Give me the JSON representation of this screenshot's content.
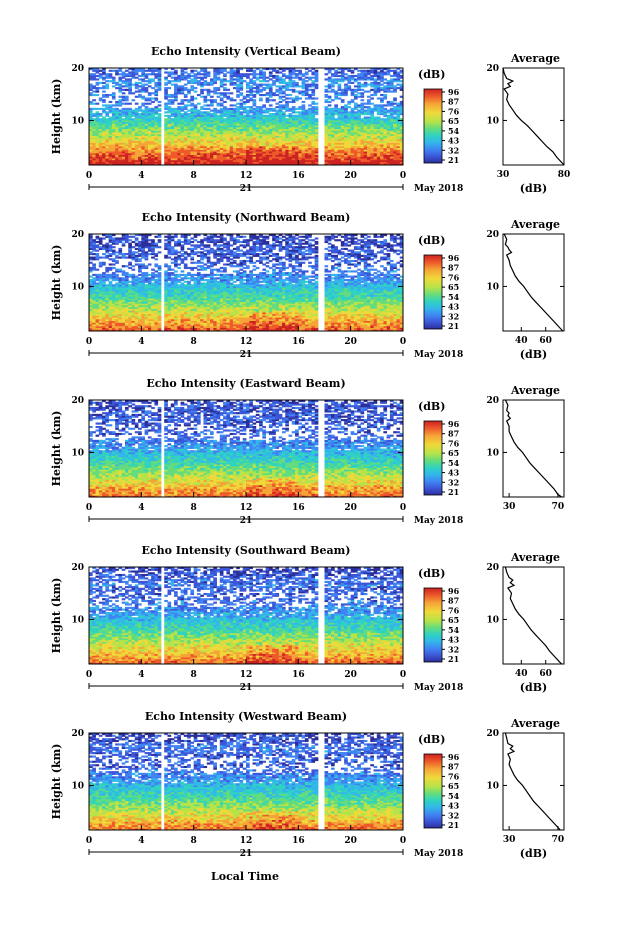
{
  "figure": {
    "xlabel": "Local Time",
    "date_label": "May 2018",
    "day_label": "21"
  },
  "colorbar": {
    "unit_label": "(dB)",
    "ticks": [
      "96",
      "87",
      "76",
      "65",
      "54",
      "43",
      "32",
      "21"
    ],
    "ticks_by_panel": [
      [
        "96",
        "87",
        "76",
        "65",
        "54",
        "43",
        "32",
        "21"
      ],
      [
        "96",
        "87",
        "76",
        "65",
        "54",
        "43",
        "32",
        "21"
      ],
      [
        "96",
        "87",
        "76",
        "65",
        "54",
        "43",
        "32",
        "21"
      ],
      [
        "96",
        "87",
        "76",
        "65",
        "54",
        "43",
        "32",
        "21"
      ],
      [
        "96",
        "87",
        "76",
        "65",
        "54",
        "43",
        "32",
        "21"
      ]
    ],
    "colors": [
      "#2b2f9a",
      "#3c56d8",
      "#3f84f2",
      "#33b7ea",
      "#30d2c1",
      "#62dc7e",
      "#b6e34a",
      "#efd93a",
      "#f5a437",
      "#ee5a2a",
      "#cc2222"
    ]
  },
  "chart_data": [
    {
      "type": "heatmap",
      "title": "Echo Intensity (Vertical Beam)",
      "ylabel": "Height (km)",
      "x_ticks": [
        "0",
        "4",
        "8",
        "12",
        "16",
        "20",
        "0"
      ],
      "y_ticks": [
        "20",
        "10"
      ],
      "xlim": [
        0,
        24
      ],
      "ylim": [
        1.5,
        20
      ],
      "color_range_db": [
        21,
        96
      ],
      "data_gaps_local_time": [
        [
          5.5,
          5.8
        ],
        [
          17.6,
          17.9
        ]
      ],
      "profile": {
        "title": "Average",
        "xlabel": "(dB)",
        "x_ticks": [
          "30",
          "80"
        ],
        "xlim": [
          30,
          80
        ],
        "y_ticks": [
          "20",
          "10"
        ],
        "height_km": [
          1.5,
          2,
          3,
          4,
          5,
          6,
          7,
          8,
          9,
          10,
          11,
          12,
          13,
          14,
          15,
          16,
          16.5,
          17,
          17.5,
          18,
          19,
          20
        ],
        "mean_db": [
          80,
          78,
          74,
          71,
          66,
          62,
          58,
          54,
          50,
          45,
          41,
          38,
          35,
          33,
          34,
          31,
          36,
          34,
          38,
          33,
          31,
          30
        ]
      }
    },
    {
      "type": "heatmap",
      "title": "Echo Intensity (Northward Beam)",
      "ylabel": "Height (km)",
      "x_ticks": [
        "0",
        "4",
        "8",
        "12",
        "16",
        "20",
        "0"
      ],
      "y_ticks": [
        "20",
        "10"
      ],
      "xlim": [
        0,
        24
      ],
      "ylim": [
        1.5,
        20
      ],
      "color_range_db": [
        21,
        96
      ],
      "data_gaps_local_time": [
        [
          5.5,
          5.8
        ],
        [
          17.6,
          17.9
        ]
      ],
      "profile": {
        "title": "Average",
        "xlabel": "(dB)",
        "x_ticks": [
          "40",
          "60"
        ],
        "xlim": [
          25,
          75
        ],
        "y_ticks": [
          "20",
          "10"
        ],
        "height_km": [
          1.5,
          2,
          3,
          4,
          5,
          6,
          7,
          8,
          9,
          10,
          11,
          12,
          13,
          14,
          15,
          16,
          16.5,
          17,
          17.5,
          18,
          19,
          20
        ],
        "mean_db": [
          74,
          72,
          68,
          64,
          60,
          56,
          52,
          48,
          45,
          42,
          38,
          35,
          33,
          31,
          30,
          28,
          32,
          30,
          29,
          27,
          28,
          26
        ]
      }
    },
    {
      "type": "heatmap",
      "title": "Echo Intensity (Eastward Beam)",
      "ylabel": "Height (km)",
      "x_ticks": [
        "0",
        "4",
        "8",
        "12",
        "16",
        "20",
        "0"
      ],
      "y_ticks": [
        "20",
        "10"
      ],
      "xlim": [
        0,
        24
      ],
      "ylim": [
        1.5,
        20
      ],
      "color_range_db": [
        21,
        96
      ],
      "data_gaps_local_time": [
        [
          5.5,
          5.8
        ],
        [
          17.6,
          17.9
        ]
      ],
      "profile": {
        "title": "Average",
        "xlabel": "",
        "x_ticks": [
          "30",
          "70"
        ],
        "xlim": [
          25,
          75
        ],
        "y_ticks": [
          "20",
          "10"
        ],
        "height_km": [
          1.5,
          2,
          3,
          4,
          5,
          6,
          7,
          8,
          9,
          10,
          11,
          12,
          13,
          14,
          15,
          16,
          16.5,
          17,
          17.5,
          18,
          19,
          20
        ],
        "mean_db": [
          73,
          70,
          67,
          63,
          59,
          55,
          51,
          47,
          44,
          41,
          37,
          34,
          32,
          30,
          30,
          28,
          31,
          29,
          30,
          28,
          29,
          27
        ]
      }
    },
    {
      "type": "heatmap",
      "title": "Echo Intensity (Southward Beam)",
      "ylabel": "Height (km)",
      "x_ticks": [
        "0",
        "4",
        "8",
        "12",
        "16",
        "20",
        "0"
      ],
      "y_ticks": [
        "20",
        "10"
      ],
      "xlim": [
        0,
        24
      ],
      "ylim": [
        1.5,
        20
      ],
      "color_range_db": [
        21,
        96
      ],
      "data_gaps_local_time": [
        [
          5.5,
          5.8
        ],
        [
          17.6,
          17.9
        ]
      ],
      "profile": {
        "title": "Average",
        "xlabel": "(dB)",
        "x_ticks": [
          "40",
          "60"
        ],
        "xlim": [
          25,
          75
        ],
        "y_ticks": [
          "20",
          "10"
        ],
        "height_km": [
          1.5,
          2,
          3,
          4,
          5,
          6,
          7,
          8,
          9,
          10,
          11,
          12,
          13,
          14,
          15,
          16,
          16.5,
          17,
          17.5,
          18,
          19,
          20
        ],
        "mean_db": [
          73,
          71,
          67,
          63,
          60,
          56,
          52,
          48,
          45,
          42,
          38,
          35,
          33,
          31,
          32,
          29,
          34,
          31,
          33,
          30,
          28,
          27
        ]
      }
    },
    {
      "type": "heatmap",
      "title": "Echo Intensity (Westward Beam)",
      "ylabel": "Height (km)",
      "x_ticks": [
        "0",
        "4",
        "8",
        "12",
        "16",
        "20",
        "0"
      ],
      "y_ticks": [
        "20",
        "10"
      ],
      "xlim": [
        0,
        24
      ],
      "ylim": [
        1.5,
        20
      ],
      "color_range_db": [
        21,
        96
      ],
      "data_gaps_local_time": [
        [
          5.5,
          5.8
        ],
        [
          17.6,
          17.9
        ]
      ],
      "profile": {
        "title": "Average",
        "xlabel": "(dB)",
        "x_ticks": [
          "30",
          "70"
        ],
        "xlim": [
          25,
          75
        ],
        "y_ticks": [
          "20",
          "10"
        ],
        "height_km": [
          1.5,
          2,
          3,
          4,
          5,
          6,
          7,
          8,
          9,
          10,
          11,
          12,
          13,
          14,
          15,
          16,
          16.5,
          17,
          17.5,
          18,
          19,
          20
        ],
        "mean_db": [
          72,
          70,
          66,
          62,
          58,
          54,
          50,
          47,
          44,
          41,
          37,
          34,
          32,
          30,
          31,
          29,
          34,
          31,
          33,
          29,
          28,
          27
        ]
      }
    }
  ]
}
